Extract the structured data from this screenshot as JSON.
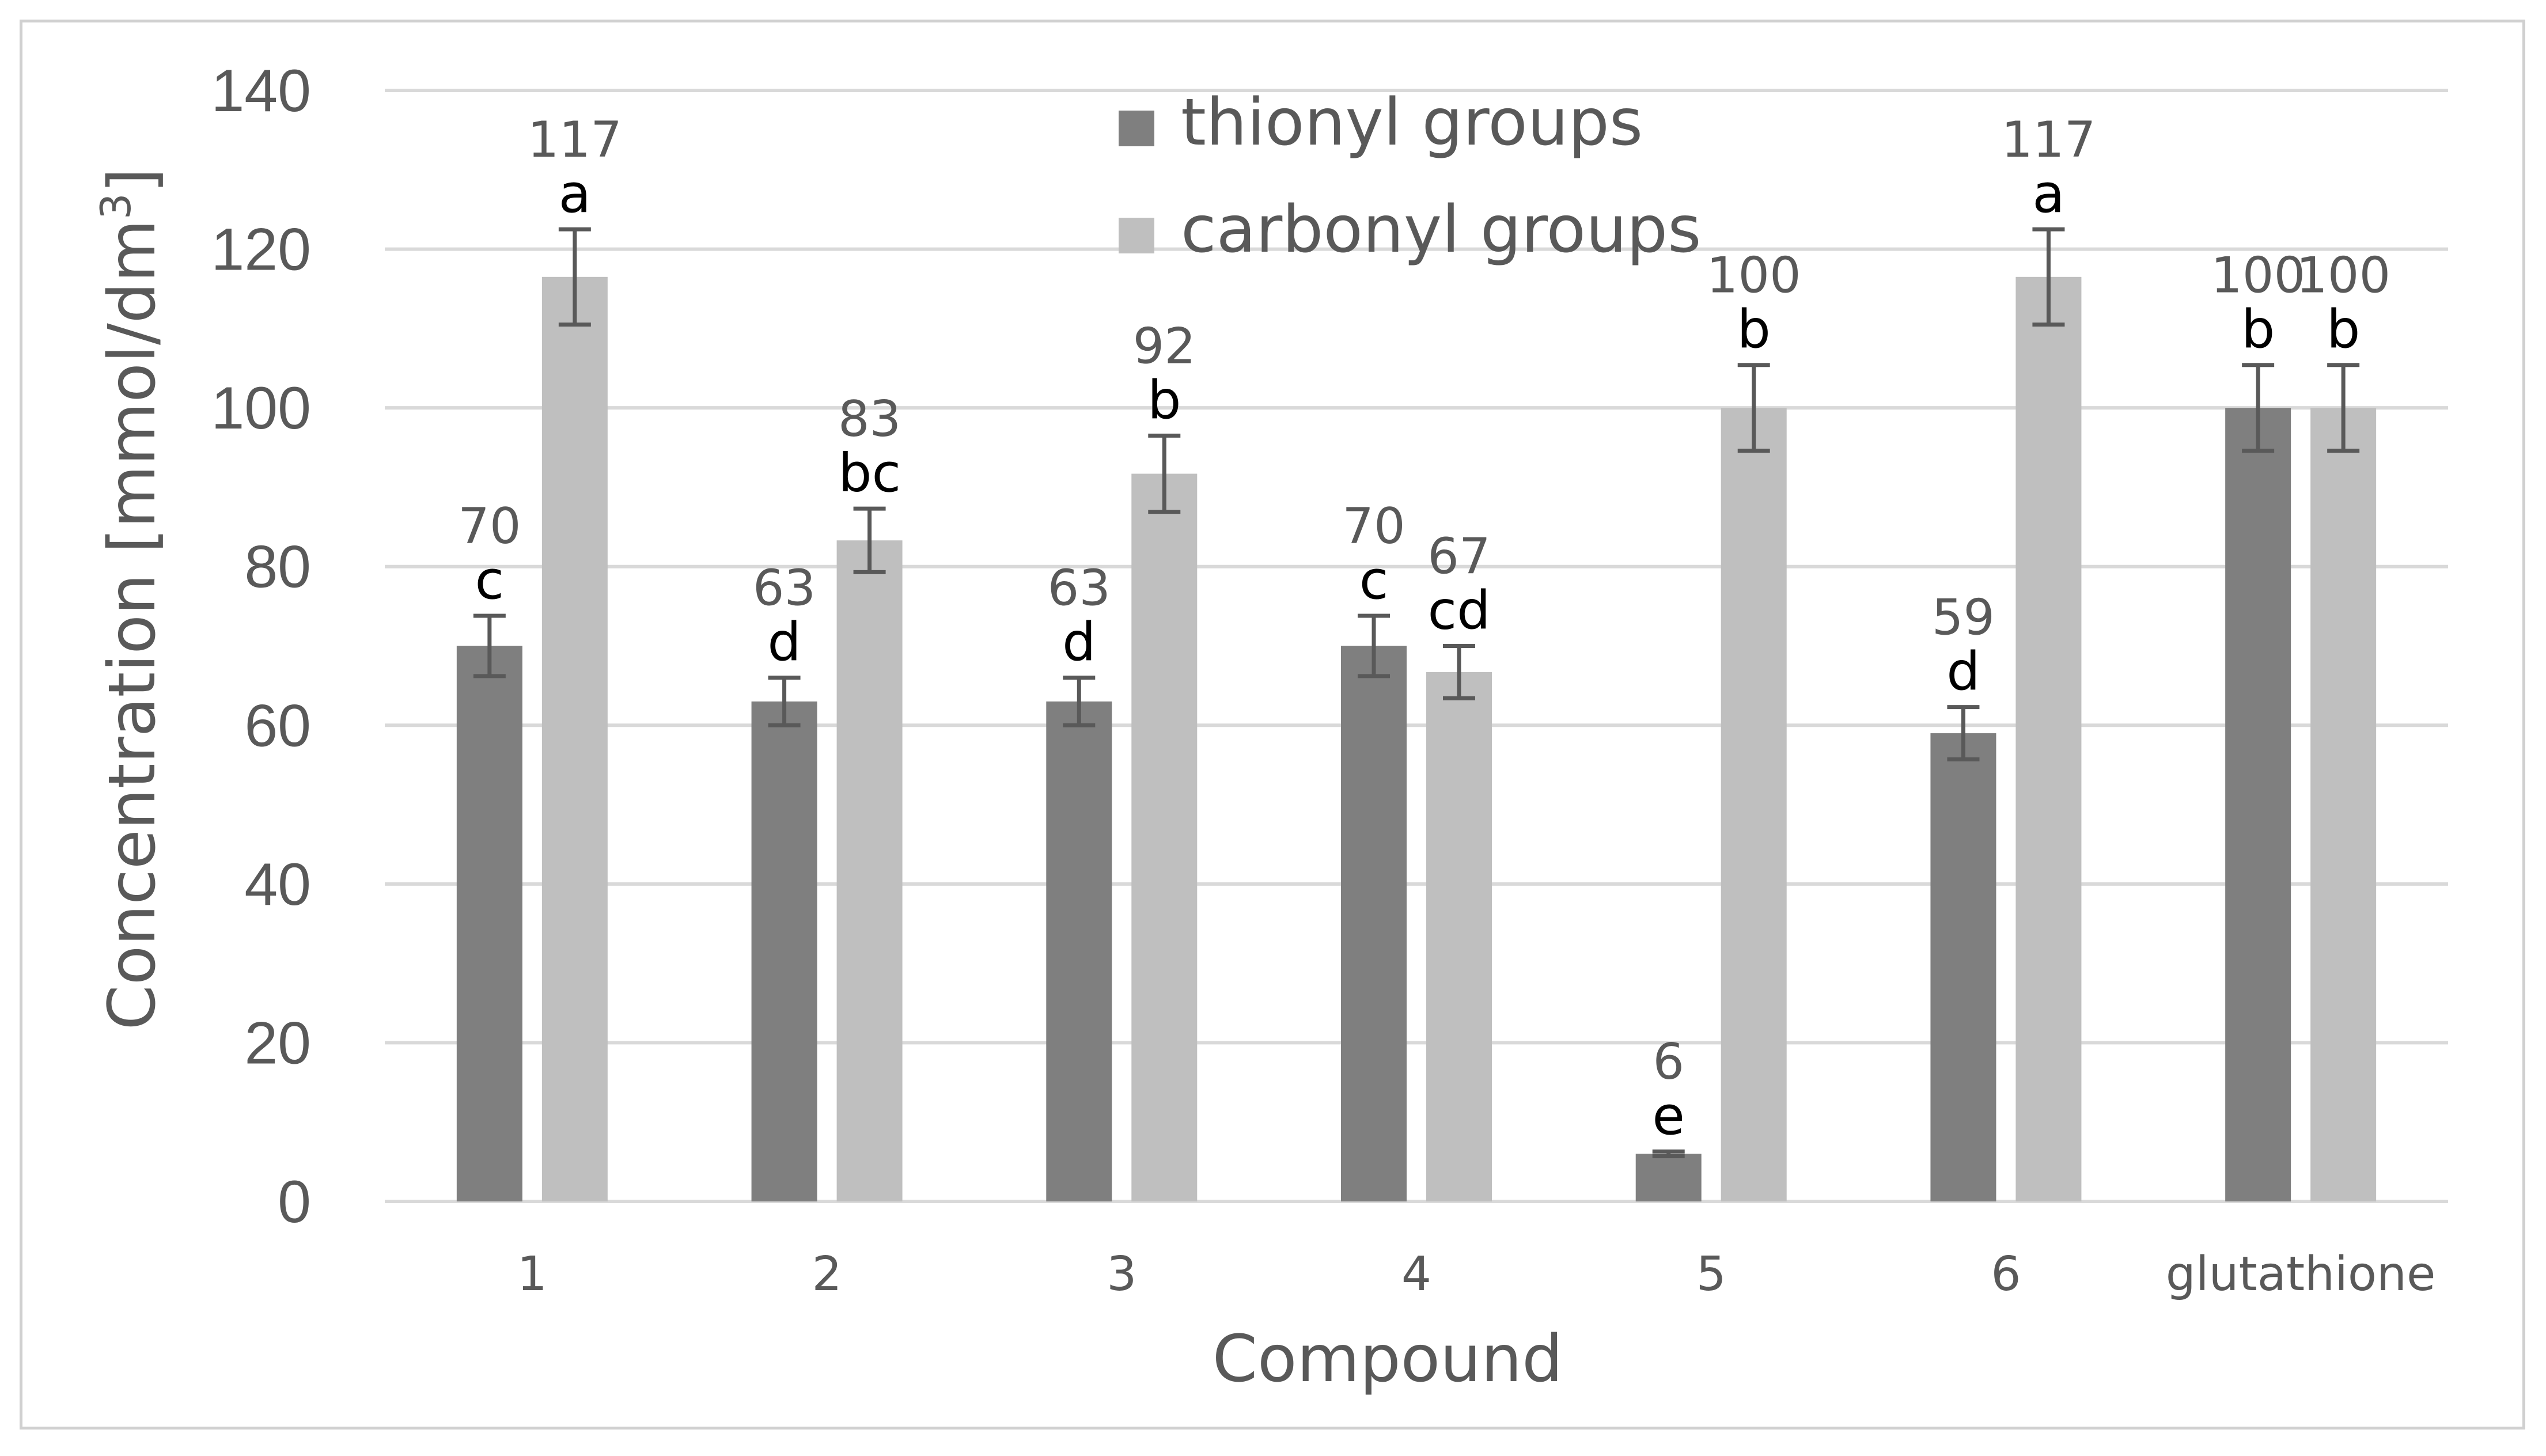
{
  "chart_data": {
    "type": "bar",
    "title": "",
    "xlabel": "Compound",
    "ylabel": "Concentration [mmol/dm",
    "ylabel_superscript": "3",
    "ylabel_suffix": "]",
    "ylim": [
      0,
      140
    ],
    "yticks": [
      0,
      20,
      40,
      60,
      80,
      100,
      120,
      140
    ],
    "grid": true,
    "legend_position": "top-center",
    "categories": [
      "1",
      "2",
      "3",
      "4",
      "5",
      "6",
      "glutathione"
    ],
    "series": [
      {
        "name": "thionyl groups",
        "color": "#7f7f7f",
        "values": [
          70,
          63,
          63,
          70,
          6,
          59,
          100
        ],
        "errors": [
          3.8,
          3,
          3,
          3.8,
          0.3,
          3.3,
          5.4
        ],
        "value_labels": [
          "70",
          "63",
          "63",
          "70",
          "6",
          "59",
          "100"
        ],
        "letters": [
          "c",
          "d",
          "d",
          "c",
          "e",
          "d",
          "b"
        ]
      },
      {
        "name": "carbonyl groups",
        "color": "#bfbfbf",
        "values": [
          116.5,
          83.3,
          91.7,
          66.7,
          100,
          116.5,
          100
        ],
        "errors": [
          6,
          4,
          4.8,
          3.3,
          5.4,
          6,
          5.4
        ],
        "value_labels": [
          "117",
          "83",
          "92",
          "67",
          "100",
          "117",
          "100"
        ],
        "letters": [
          "a",
          "bc",
          "b",
          "cd",
          "b",
          "a",
          "b"
        ]
      }
    ]
  }
}
